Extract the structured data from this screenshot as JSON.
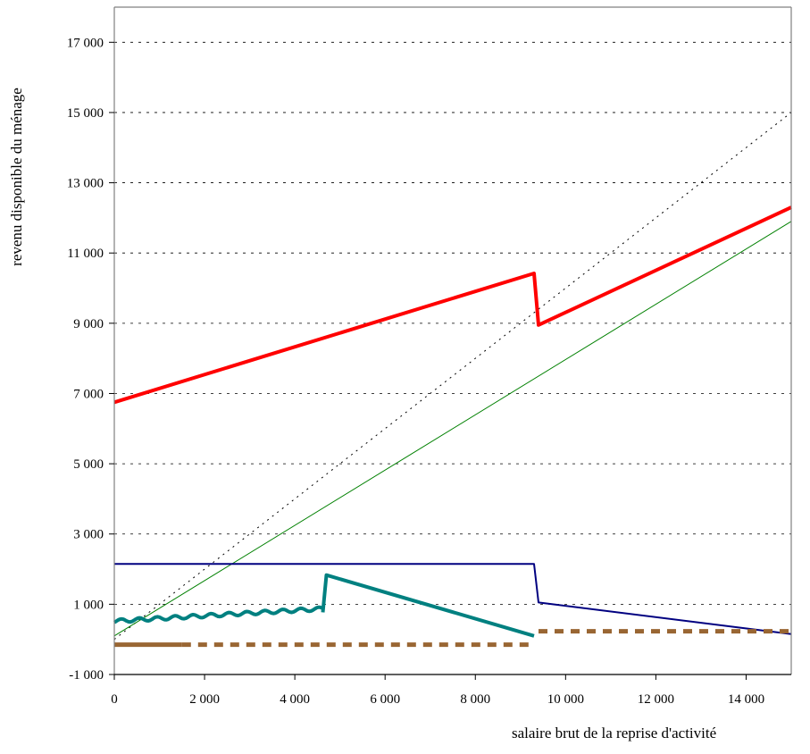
{
  "chart_data": {
    "type": "line",
    "title": "",
    "xlabel": "salaire brut de la reprise d'activité",
    "ylabel": "revenu disponible du ménage",
    "xlim": [
      0,
      15000
    ],
    "ylim": [
      -1000,
      18000
    ],
    "x_ticks": [
      0,
      2000,
      4000,
      6000,
      8000,
      10000,
      12000,
      14000
    ],
    "x_tick_labels": [
      "0",
      "2 000",
      "4 000",
      "6 000",
      "8 000",
      "10 000",
      "12 000",
      "14 000"
    ],
    "y_ticks": [
      -1000,
      1000,
      3000,
      5000,
      7000,
      9000,
      11000,
      13000,
      15000,
      17000
    ],
    "y_tick_labels": [
      "-1 000",
      "1 000",
      "3 000",
      "5 000",
      "7 000",
      "9 000",
      "11 000",
      "13 000",
      "15 000",
      "17 000"
    ],
    "grid": {
      "y": true,
      "style": "dashed",
      "color": "#000000"
    },
    "series": [
      {
        "color": "#000000",
        "style": "dotted",
        "width": 1,
        "segments": [
          [
            [
              0,
              0
            ],
            [
              15000,
              15000
            ]
          ]
        ]
      },
      {
        "color": "#008000",
        "style": "solid",
        "width": 1,
        "segments": [
          [
            [
              0,
              100
            ],
            [
              15000,
              11900
            ]
          ]
        ]
      },
      {
        "color": "#ff0000",
        "style": "solid",
        "width": 4,
        "segments": [
          [
            [
              0,
              6750
            ],
            [
              9300,
              10420
            ],
            [
              9400,
              8950
            ],
            [
              15000,
              12300
            ]
          ]
        ]
      },
      {
        "color": "#000080",
        "style": "solid",
        "width": 2,
        "segments": [
          [
            [
              0,
              2150
            ],
            [
              9300,
              2150
            ],
            [
              9400,
              1050
            ],
            [
              15000,
              150
            ]
          ]
        ]
      },
      {
        "color": "#008080",
        "style": "solid",
        "width": 4,
        "wavy": true,
        "segments": [
          [
            [
              0,
              520
            ],
            [
              4600,
              870
            ]
          ],
          [
            [
              4620,
              770
            ],
            [
              4700,
              1830
            ],
            [
              9300,
              100
            ]
          ]
        ]
      },
      {
        "color": "#996633",
        "style": "solid",
        "width": 5,
        "segments": [
          [
            [
              0,
              -150
            ],
            [
              1500,
              -150
            ]
          ]
        ]
      },
      {
        "color": "#996633",
        "style": "dashed",
        "width": 5,
        "segments": [
          [
            [
              1500,
              -150
            ],
            [
              9300,
              -150
            ]
          ],
          [
            [
              9400,
              230
            ],
            [
              15000,
              230
            ]
          ]
        ]
      }
    ]
  }
}
